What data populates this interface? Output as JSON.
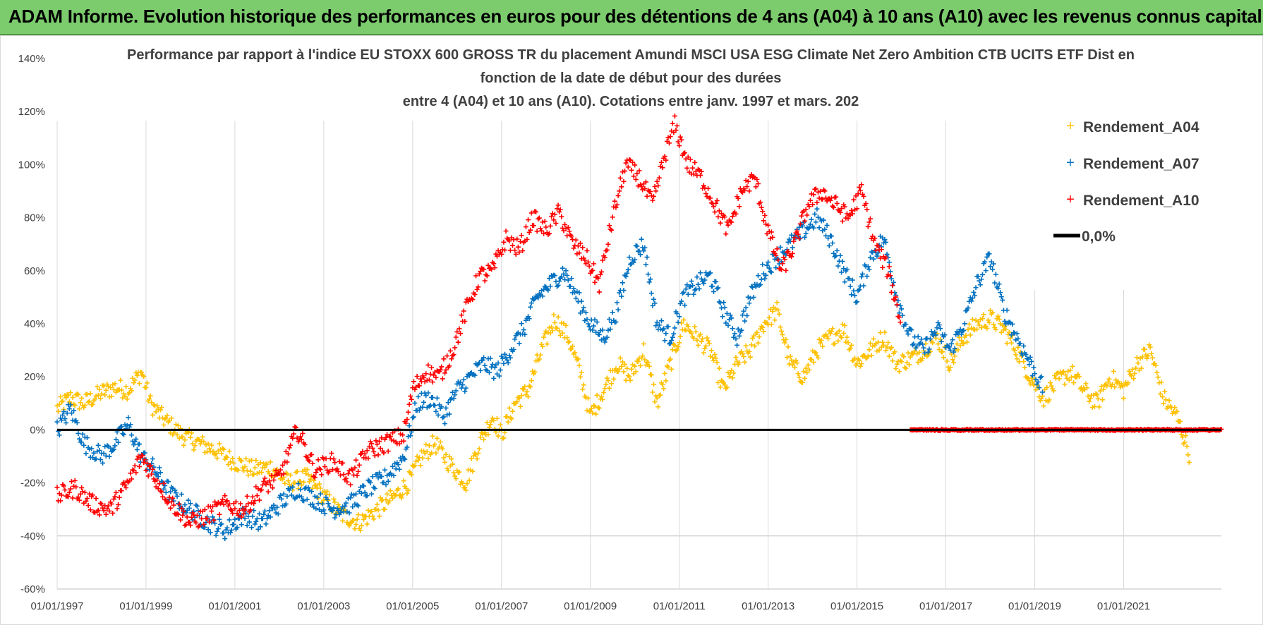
{
  "banner": {
    "text": "ADAM Informe. Evolution historique des performances en euros pour des détentions de 4 ans (A04) à 10 ans (A10) avec les revenus connus capitalisés"
  },
  "colors": {
    "banner_bg": "#7ccc6e",
    "A04": "#ffc000",
    "A07": "#0070c0",
    "A10": "#ff0000",
    "zero": "#000000"
  },
  "chart_data": {
    "type": "scatter",
    "title_lines": [
      "Performance par rapport à l'indice EU STOXX 600 GROSS TR  du placement Amundi MSCI USA ESG Climate Net Zero Ambition CTB UCITS ETF Dist en",
      "fonction de la date de début pour des durées",
      "entre 4 (A04) et 10 ans (A10). Cotations entre janv. 1997 et mars. 202"
    ],
    "xlabel": "",
    "ylabel": "",
    "ylim": [
      -60,
      140
    ],
    "y_ticks": [
      "140%",
      "120%",
      "100%",
      "80%",
      "60%",
      "40%",
      "20%",
      "0%",
      "-20%",
      "-40%",
      "-60%"
    ],
    "x_ticks": [
      "01/01/1997",
      "01/01/1999",
      "01/01/2001",
      "01/01/2003",
      "01/01/2005",
      "01/01/2007",
      "01/01/2009",
      "01/01/2011",
      "01/01/2013",
      "01/01/2015",
      "01/01/2017",
      "01/01/2019",
      "01/01/2021"
    ],
    "xlim": [
      1997.0,
      2023.2
    ],
    "grid": "vertical",
    "legend_position": "right",
    "legend": [
      "Rendement_A04",
      "Rendement_A07",
      "Rendement_A10",
      "0,0%"
    ],
    "series": [
      {
        "name": "Rendement_A04",
        "marker": "+",
        "x": [
          1997.0,
          1997.3,
          1997.6,
          1998.0,
          1998.3,
          1998.6,
          1998.9,
          1999.1,
          1999.4,
          1999.8,
          2000.2,
          2000.6,
          2001.0,
          2001.4,
          2001.8,
          2002.2,
          2002.6,
          2003.0,
          2003.4,
          2003.8,
          2004.2,
          2004.6,
          2004.9,
          2005.2,
          2005.5,
          2005.8,
          2006.2,
          2006.5,
          2006.8,
          2007.0,
          2007.3,
          2007.6,
          2007.9,
          2008.2,
          2008.5,
          2008.8,
          2009.0,
          2009.3,
          2009.6,
          2009.9,
          2010.2,
          2010.5,
          2010.8,
          2011.1,
          2011.4,
          2011.7,
          2012.0,
          2012.3,
          2012.6,
          2012.9,
          2013.2,
          2013.5,
          2013.8,
          2014.1,
          2014.4,
          2014.7,
          2015.0,
          2015.3,
          2015.6,
          2015.9,
          2016.2,
          2016.5,
          2016.8,
          2017.1,
          2017.4,
          2017.7,
          2018.0,
          2018.3,
          2018.6,
          2018.9,
          2019.2,
          2019.5,
          2019.8,
          2020.1,
          2020.4,
          2020.7,
          2021.0,
          2021.3,
          2021.6,
          2021.9,
          2022.2,
          2022.5
        ],
        "y": [
          8,
          12,
          10,
          14,
          16,
          15,
          22,
          10,
          4,
          -2,
          -5,
          -8,
          -12,
          -15,
          -14,
          -20,
          -18,
          -25,
          -32,
          -35,
          -30,
          -25,
          -20,
          -10,
          -5,
          -12,
          -20,
          -5,
          5,
          -2,
          10,
          15,
          30,
          42,
          35,
          20,
          5,
          15,
          25,
          20,
          30,
          10,
          25,
          40,
          35,
          30,
          15,
          25,
          30,
          40,
          45,
          25,
          20,
          30,
          35,
          38,
          25,
          30,
          35,
          25,
          27,
          30,
          35,
          25,
          35,
          40,
          42,
          38,
          30,
          20,
          12,
          18,
          22,
          15,
          10,
          20,
          15,
          25,
          30,
          12,
          5,
          -10
        ]
      },
      {
        "name": "Rendement_A07",
        "marker": "+",
        "x": [
          1997.0,
          1997.3,
          1997.6,
          1998.0,
          1998.3,
          1998.6,
          1998.9,
          1999.2,
          1999.6,
          2000.0,
          2000.4,
          2000.8,
          2001.2,
          2001.6,
          2002.0,
          2002.4,
          2002.8,
          2003.2,
          2003.6,
          2004.0,
          2004.4,
          2004.8,
          2005.1,
          2005.4,
          2005.7,
          2006.0,
          2006.3,
          2006.6,
          2006.9,
          2007.2,
          2007.5,
          2007.8,
          2008.1,
          2008.4,
          2008.7,
          2009.0,
          2009.3,
          2009.6,
          2009.9,
          2010.2,
          2010.5,
          2010.8,
          2011.1,
          2011.4,
          2011.7,
          2012.0,
          2012.3,
          2012.6,
          2012.9,
          2013.2,
          2013.5,
          2013.8,
          2014.1,
          2014.4,
          2014.7,
          2015.0,
          2015.3,
          2015.6,
          2015.9,
          2016.2,
          2016.5,
          2016.8,
          2017.1,
          2017.4,
          2017.7,
          2018.0,
          2018.3,
          2018.6,
          2018.9,
          2019.2
        ],
        "y": [
          0,
          8,
          -5,
          -10,
          -5,
          2,
          -10,
          -15,
          -25,
          -30,
          -35,
          -38,
          -32,
          -35,
          -28,
          -22,
          -26,
          -30,
          -28,
          -22,
          -18,
          -10,
          10,
          12,
          5,
          15,
          20,
          25,
          22,
          30,
          38,
          50,
          55,
          60,
          50,
          40,
          35,
          45,
          65,
          70,
          40,
          35,
          50,
          55,
          58,
          45,
          35,
          50,
          60,
          65,
          70,
          75,
          80,
          72,
          60,
          50,
          65,
          72,
          50,
          35,
          30,
          38,
          30,
          40,
          55,
          65,
          45,
          35,
          25,
          15
        ]
      },
      {
        "name": "Rendement_A10",
        "marker": "+",
        "x": [
          1997.0,
          1997.4,
          1997.8,
          1998.2,
          1998.6,
          1998.9,
          1999.2,
          1999.6,
          2000.0,
          2000.4,
          2000.8,
          2001.2,
          2001.6,
          2002.0,
          2002.4,
          2002.8,
          2003.2,
          2003.6,
          2004.0,
          2004.4,
          2004.8,
          2005.0,
          2005.3,
          2005.6,
          2005.9,
          2006.2,
          2006.5,
          2006.8,
          2007.1,
          2007.4,
          2007.7,
          2008.0,
          2008.3,
          2008.6,
          2008.9,
          2009.2,
          2009.5,
          2009.8,
          2010.1,
          2010.4,
          2010.7,
          2010.9,
          2011.2,
          2011.5,
          2011.8,
          2012.1,
          2012.4,
          2012.7,
          2013.0,
          2013.3,
          2013.6,
          2013.9,
          2014.2,
          2014.5,
          2014.8,
          2015.1,
          2015.4,
          2015.7,
          2016.0
        ],
        "y": [
          -25,
          -22,
          -28,
          -30,
          -20,
          -10,
          -18,
          -28,
          -35,
          -32,
          -28,
          -30,
          -22,
          -18,
          0,
          -15,
          -12,
          -18,
          -8,
          -5,
          -2,
          15,
          22,
          20,
          30,
          45,
          58,
          60,
          72,
          68,
          80,
          75,
          82,
          70,
          65,
          55,
          80,
          100,
          95,
          85,
          105,
          115,
          100,
          95,
          85,
          75,
          90,
          95,
          75,
          60,
          70,
          85,
          90,
          85,
          80,
          90,
          70,
          60,
          40
        ]
      },
      {
        "name": "Rendement_A10 (0% segment)",
        "marker": "+",
        "x_range": [
          2016.2,
          2023.2
        ],
        "y_constant": 0
      }
    ],
    "reference_line": {
      "label": "0,0%",
      "y": 0
    }
  }
}
